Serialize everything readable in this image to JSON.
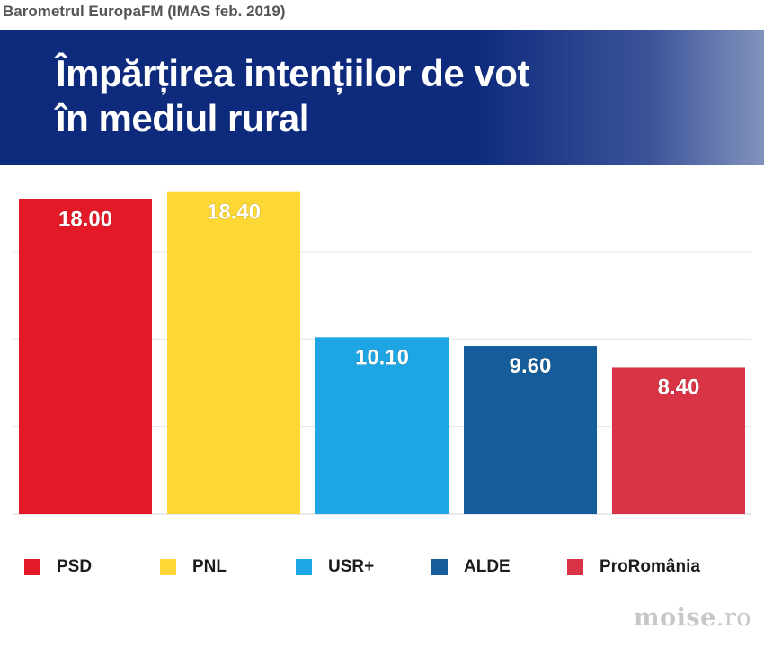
{
  "header": {
    "caption": "Barometrul EuropaFM (IMAS feb. 2019)",
    "title_lines": [
      "Împărțirea intențiilor de vot",
      "în mediul rural"
    ]
  },
  "chart_data": {
    "type": "bar",
    "categories": [
      "PSD",
      "PNL",
      "USR+",
      "ALDE",
      "ProRomânia"
    ],
    "values": [
      18.0,
      18.4,
      10.1,
      9.6,
      8.4
    ],
    "value_labels": [
      "18.00",
      "18.40",
      "10.10",
      "9.60",
      "8.40"
    ],
    "colors": [
      "#e31927",
      "#fdd835",
      "#1da6e3",
      "#155c9b",
      "#d93445"
    ],
    "title": "Împărțirea intențiilor de vot în mediul rural",
    "xlabel": "",
    "ylabel": "",
    "ylim": [
      0,
      19
    ],
    "grid": true,
    "legend_position": "bottom"
  },
  "watermark": {
    "name": "moise",
    "tld": ".ro"
  }
}
